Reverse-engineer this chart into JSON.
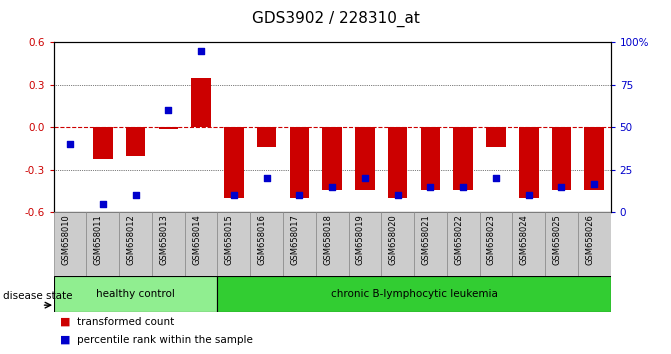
{
  "title": "GDS3902 / 228310_at",
  "samples": [
    "GSM658010",
    "GSM658011",
    "GSM658012",
    "GSM658013",
    "GSM658014",
    "GSM658015",
    "GSM658016",
    "GSM658017",
    "GSM658018",
    "GSM658019",
    "GSM658020",
    "GSM658021",
    "GSM658022",
    "GSM658023",
    "GSM658024",
    "GSM658025",
    "GSM658026"
  ],
  "bar_values": [
    0.0,
    -0.22,
    -0.2,
    -0.01,
    0.35,
    -0.5,
    -0.14,
    -0.5,
    -0.44,
    -0.44,
    -0.5,
    -0.44,
    -0.44,
    -0.14,
    -0.5,
    -0.44,
    -0.44
  ],
  "percentile_percent": [
    40,
    5,
    10,
    60,
    95,
    10,
    20,
    10,
    15,
    20,
    10,
    15,
    15,
    20,
    10,
    15,
    17
  ],
  "healthy_control_count": 5,
  "group_labels": [
    "healthy control",
    "chronic B-lymphocytic leukemia"
  ],
  "bar_color": "#cc0000",
  "dot_color": "#0000cc",
  "ylim": [
    -0.6,
    0.6
  ],
  "yticks_left": [
    -0.6,
    -0.3,
    0.0,
    0.3,
    0.6
  ],
  "yticks_right": [
    0,
    25,
    50,
    75,
    100
  ],
  "legend_bar": "transformed count",
  "legend_dot": "percentile rank within the sample",
  "disease_state_label": "disease state",
  "tick_label_color_left": "#cc0000",
  "tick_label_color_right": "#0000cc",
  "title_fontsize": 11,
  "tick_fontsize": 7.5,
  "label_fontsize": 7.5
}
